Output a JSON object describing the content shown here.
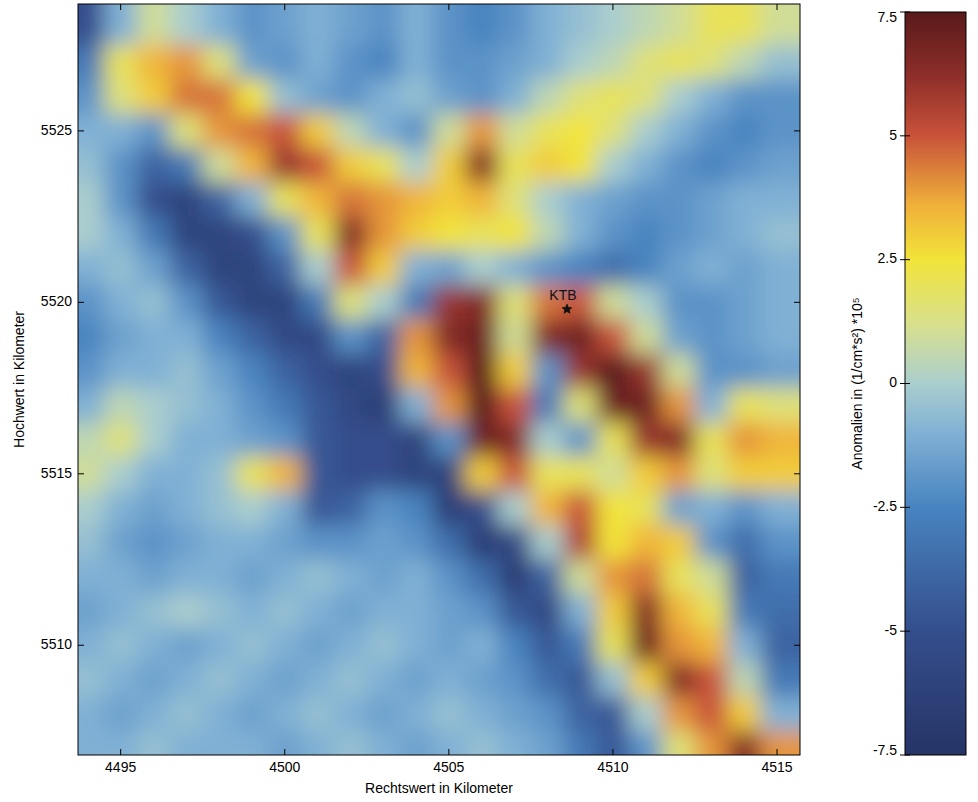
{
  "chart_data": {
    "type": "heatmap",
    "xlabel": "Rechtswert in Kilometer",
    "ylabel": "Hochwert in Kilometer",
    "xlim": [
      4493.7,
      4515.7
    ],
    "ylim": [
      5506.8,
      5528.7
    ],
    "xticks": [
      4495,
      4500,
      4505,
      4510,
      4515
    ],
    "yticks": [
      5510,
      5515,
      5520,
      5525
    ],
    "x": [
      4494,
      4495,
      4496,
      4497,
      4498,
      4499,
      4500,
      4501,
      4502,
      4503,
      4504,
      4505,
      4506,
      4507,
      4508,
      4509,
      4510,
      4511,
      4512,
      4513,
      4514,
      4515
    ],
    "y": [
      5528,
      5527,
      5526,
      5525,
      5524,
      5523,
      5522,
      5521,
      5520,
      5519,
      5518,
      5517,
      5516,
      5515,
      5514,
      5513,
      5512,
      5511,
      5510,
      5509,
      5508,
      5507
    ],
    "values": [
      [
        -5,
        -1,
        1,
        0,
        -1,
        -2,
        -1.5,
        -1,
        -1.5,
        -2,
        -1,
        -2,
        -2.5,
        -2,
        -1,
        -0.5,
        0,
        0.5,
        1,
        2,
        2,
        1
      ],
      [
        -3,
        2,
        3.5,
        4,
        1.5,
        -1.5,
        -2,
        -1,
        -2,
        -2.5,
        -1,
        -2,
        -2,
        -1.5,
        -1,
        0,
        0.5,
        1.5,
        2,
        1.5,
        0.5,
        -0.5
      ],
      [
        -2,
        1.5,
        3,
        4.5,
        4.5,
        2.5,
        -0.5,
        -1.5,
        -2,
        -1,
        -0.5,
        -1.5,
        -2,
        -1,
        0.5,
        1.5,
        2,
        1.5,
        0,
        -1,
        -2,
        -2
      ],
      [
        -1,
        -1,
        -2,
        1.5,
        4,
        4.5,
        5,
        3,
        0.5,
        -1,
        -2,
        1,
        4,
        1,
        2,
        2.5,
        1.5,
        0,
        -1,
        -2,
        -2.5,
        -2
      ],
      [
        -0.5,
        -2,
        -4,
        -3,
        1,
        3.5,
        6,
        5,
        3,
        2,
        0,
        3,
        6.5,
        2,
        3,
        2.5,
        0,
        -1,
        -2,
        -2.5,
        -2,
        -1.5
      ],
      [
        0,
        -2,
        -5,
        -6,
        -4,
        -1,
        2,
        3.5,
        4.5,
        4,
        3.5,
        3,
        3.5,
        1.5,
        0,
        -1,
        -1.5,
        -2,
        -2,
        -1.5,
        -1,
        -1
      ],
      [
        0,
        -1,
        -3,
        -6,
        -6,
        -5,
        -2,
        2,
        6.5,
        4,
        3,
        2.5,
        2,
        2.5,
        0.5,
        -1,
        -2,
        -2.5,
        -2,
        -1.5,
        -1,
        -0.5
      ],
      [
        -1,
        -0.5,
        -1.5,
        -4,
        -6,
        -6,
        -4,
        0,
        5,
        3,
        -1,
        -1.5,
        0,
        -1,
        -2,
        -2.5,
        -3.5,
        -2.5,
        -1.5,
        -1,
        -1.5,
        -1
      ],
      [
        -2,
        -1,
        -0.5,
        -2,
        -4.5,
        -6,
        -6,
        -3,
        1.5,
        0,
        -3,
        6,
        6.5,
        1.5,
        4.5,
        5,
        1,
        0,
        -2,
        -2,
        -1.5,
        -1
      ],
      [
        -2.5,
        -1.5,
        -1,
        -1,
        -2.5,
        -4,
        -5.5,
        -5.5,
        -2,
        -4,
        4,
        6.5,
        7,
        1,
        6.5,
        7,
        5,
        1,
        -1.5,
        -2,
        -1.5,
        -1
      ],
      [
        -2,
        -1,
        -1,
        -0.5,
        -1.5,
        -2.5,
        -4,
        -5,
        -6,
        -5,
        3.5,
        5,
        7.5,
        3,
        -2,
        6,
        7.5,
        6,
        1,
        -2,
        -2,
        -1.5
      ],
      [
        -1,
        0.5,
        0,
        -0.5,
        -1,
        -2,
        -3,
        -4.5,
        -5.5,
        -6.5,
        -1,
        4,
        7.5,
        5,
        -3,
        1.5,
        7,
        7,
        4,
        -1,
        2,
        1.5
      ],
      [
        0.5,
        1.5,
        0,
        -1,
        -1,
        -1.5,
        -2,
        -4.5,
        -5,
        -5,
        -6,
        -2,
        7,
        6.5,
        0,
        -2,
        2,
        6,
        6.5,
        2,
        4,
        3.5
      ],
      [
        1,
        0,
        -1,
        -1,
        -0.5,
        2,
        3.5,
        -4.5,
        -5,
        -5,
        -6,
        -6,
        3,
        5,
        2,
        2,
        1,
        3,
        4,
        1.5,
        3,
        3
      ],
      [
        0,
        -1,
        -1.5,
        -1,
        -0.5,
        0,
        -1,
        -4.5,
        -4,
        -2,
        -2.5,
        -6.5,
        -5,
        0,
        3.5,
        5,
        2.5,
        2,
        -1.5,
        -1,
        -2,
        -1
      ],
      [
        -0.5,
        -1.5,
        -2,
        -1.5,
        -1,
        -1,
        -1.5,
        -2,
        -2,
        -1.5,
        -2,
        -3.5,
        -6.5,
        -5.5,
        0,
        5.5,
        2.5,
        3.5,
        3,
        -2,
        -3.5,
        -2
      ],
      [
        -1,
        -1,
        -1.5,
        -1,
        -1,
        -1.5,
        -1,
        -0.5,
        -1,
        -1.5,
        -1,
        -2,
        -3.5,
        -6.5,
        -4,
        1,
        4,
        4.5,
        2,
        1,
        -4,
        -3
      ],
      [
        -1.5,
        -1,
        -0.5,
        0,
        -0.5,
        -1,
        -0.5,
        -1,
        -1.5,
        -1,
        -1,
        -1.5,
        -2,
        -4.5,
        -5.5,
        -1,
        3,
        6.5,
        3.5,
        2,
        -3,
        -3.5
      ],
      [
        -1,
        -0.5,
        -1,
        -1.5,
        -1,
        -0.5,
        -1,
        -1.5,
        -1,
        -0.5,
        -1,
        -1.5,
        -1,
        -2.5,
        -4.5,
        -3,
        2,
        7,
        4,
        3.5,
        -1,
        -4
      ],
      [
        -0.5,
        -1,
        -1.5,
        -1,
        -0.5,
        -1,
        -1.5,
        -1,
        -0.5,
        -1,
        -1.5,
        -1,
        -1.5,
        -2,
        -3.5,
        -4.5,
        -0.5,
        3,
        6.5,
        5,
        0.5,
        -3
      ],
      [
        -1,
        -1.5,
        -1,
        -0.5,
        -1,
        -1.5,
        -1,
        -0.5,
        -1,
        -1.5,
        -1,
        -0.5,
        -1,
        -1.5,
        -2,
        -4,
        -4.5,
        0,
        4,
        5,
        3,
        -1
      ],
      [
        -1,
        -1,
        -0.5,
        -1,
        -1,
        -1,
        -1.5,
        -1,
        -0.5,
        -1,
        -1.5,
        -1,
        -0.5,
        -1,
        -1.5,
        -3,
        -4.5,
        -2,
        1.5,
        4,
        6.5,
        4
      ]
    ],
    "colorbar": {
      "title": "Anomalien in (1/cm*s²) *10⁵",
      "lim": [
        -7.5,
        7.5
      ],
      "ticks": [
        -7.5,
        -5,
        -2.5,
        0,
        2.5,
        5,
        7.5
      ]
    },
    "annotations": [
      {
        "text": "KTB",
        "x": 4508.6,
        "y": 5519.8
      }
    ]
  }
}
